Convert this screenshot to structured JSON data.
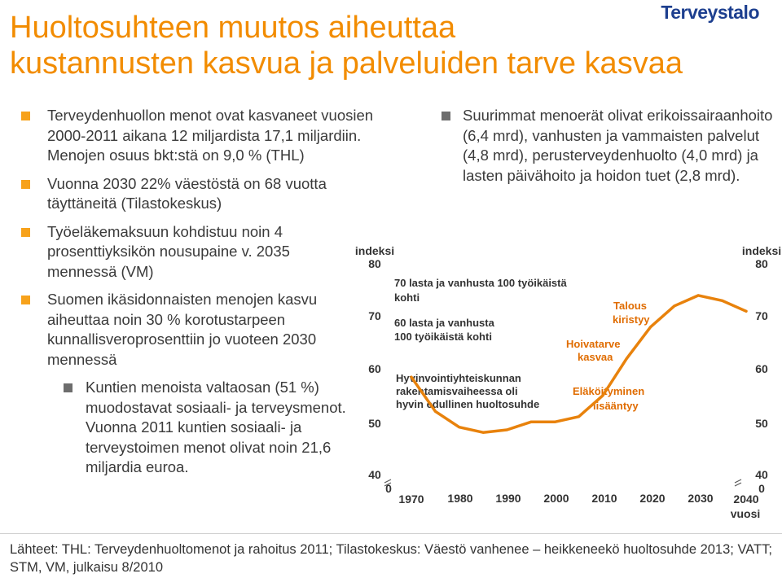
{
  "title_line1": "Huoltosuhteen muutos aiheuttaa",
  "title_line2": "kustannusten kasvua ja palveluiden tarve kasvaa",
  "logo": "Terveystalo",
  "left_bullets": [
    "Terveydenhuollon menot ovat kasvaneet vuosien 2000-2011 aikana 12 miljardista 17,1 miljardiin. Menojen osuus bkt:stä on 9,0 % (THL)",
    "Vuonna 2030 22% väestöstä on 68 vuotta täyttäneitä (Tilastokeskus)",
    "Työeläkemaksuun kohdistuu noin 4 prosenttiyksikön nousupaine v. 2035 mennessä (VM)",
    "Suomen ikäsidonnaisten menojen kasvu aiheuttaa noin 30 % korotustarpeen kunnallisveroprosenttiin jo vuoteen 2030 mennessä"
  ],
  "sub_bullet": "Kuntien menoista valtaosan (51 %) muodostavat sosiaali- ja terveysmenot. Vuonna 2011 kuntien sosiaali- ja terveystoimen menot olivat noin 21,6 miljardia euroa.",
  "right_bullet": "Suurimmat menoerät olivat erikoissairaanhoito (6,4 mrd), vanhusten ja vammaisten palvelut (4,8 mrd), perusterveydenhuolto (4,0 mrd) ja lasten päivähoito ja hoidon tuet (2,8 mrd).",
  "source": "Lähteet: THL: Terveydenhuoltomenot ja rahoitus 2011; Tilastokeskus: Väestö vanhenee – heikkeneekö huoltosuhde 2013; VATT; STM, VM, julkaisu 8/2010",
  "chart_data": {
    "type": "line",
    "ylabel_left": "indeksi",
    "ylabel_right": "indeksi",
    "xlabel": "vuosi",
    "y_ticks": [
      "80",
      "70",
      "60",
      "50",
      "40",
      "0"
    ],
    "x_ticks": [
      "1970",
      "1980",
      "1990",
      "2000",
      "2010",
      "2020",
      "2030",
      "2040"
    ],
    "x": [
      1970,
      1975,
      1980,
      1985,
      1990,
      1995,
      2000,
      2005,
      2010,
      2015,
      2020,
      2025,
      2030,
      2035,
      2040
    ],
    "values": [
      58.5,
      52,
      49,
      48,
      48.5,
      50,
      50,
      51,
      55,
      62,
      68,
      72,
      74,
      73,
      71
    ],
    "series_color": "#e8820c",
    "annotations": {
      "legend_line1": "70 lasta ja vanhusta 100 työikäistä",
      "legend_line2": "kohti",
      "legend_line3": "60 lasta ja vanhusta",
      "legend_line4": "100 työikäistä kohti",
      "note1_line1": "Hyvinvointiyhteiskunnan",
      "note1_line2": "rakentamisvaiheessa oli",
      "note1_line3": "hyvin edullinen huoltosuhde",
      "note2_line1": "Eläköityminen",
      "note2_line2": "lisääntyy",
      "note3_line1": "Hoivatarve",
      "note3_line2": "kasvaa",
      "note4_line1": "Talous",
      "note4_line2": "kiristyy"
    }
  }
}
